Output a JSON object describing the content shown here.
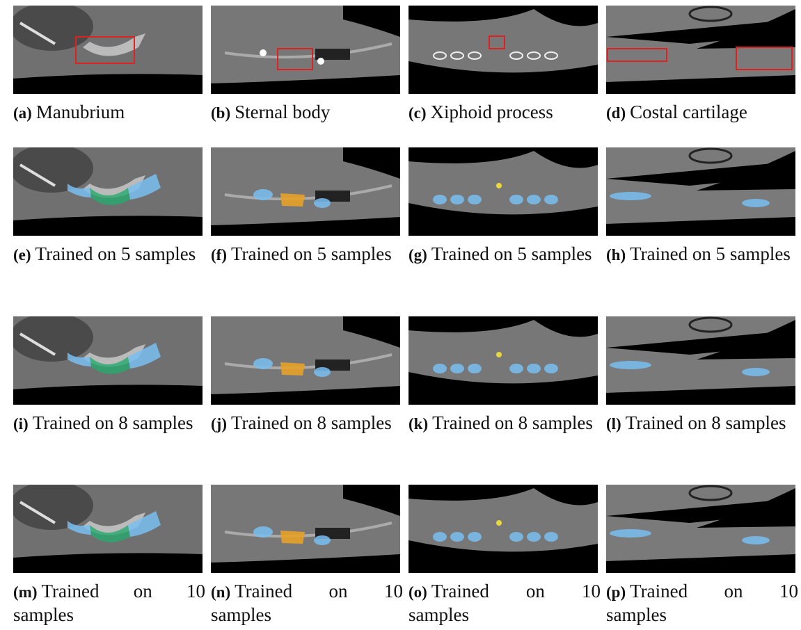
{
  "panels": [
    {
      "label": "(a)",
      "caption": "Manubrium"
    },
    {
      "label": "(b)",
      "caption": "Sternal body"
    },
    {
      "label": "(c)",
      "caption": "Xiphoid process"
    },
    {
      "label": "(d)",
      "caption": "Costal cartilage"
    },
    {
      "label": "(e)",
      "caption": "Trained on 5 samples"
    },
    {
      "label": "(f)",
      "caption": "Trained on 5 samples"
    },
    {
      "label": "(g)",
      "caption": "Trained on 5 samples"
    },
    {
      "label": "(h)",
      "caption": "Trained on 5 samples"
    },
    {
      "label": "(i)",
      "caption": "Trained on 8 samples"
    },
    {
      "label": "(j)",
      "caption": "Trained on 8 samples"
    },
    {
      "label": "(k)",
      "caption": "Trained on 8 samples"
    },
    {
      "label": "(l)",
      "caption": "Trained on 8 samples"
    },
    {
      "label": "(m)",
      "caption": "Trained on 10 samples"
    },
    {
      "label": "(n)",
      "caption": "Trained on 10 samples"
    },
    {
      "label": "(o)",
      "caption": "Trained on 10 samples"
    },
    {
      "label": "(p)",
      "caption": "Trained on 10 samples"
    }
  ]
}
